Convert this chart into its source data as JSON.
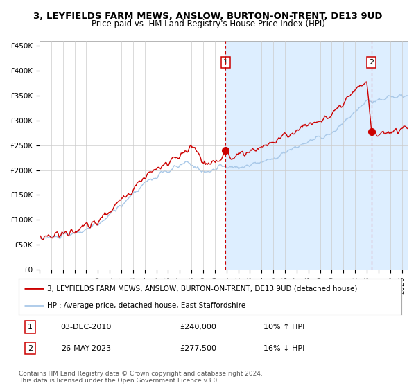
{
  "title": "3, LEYFIELDS FARM MEWS, ANSLOW, BURTON-ON-TRENT, DE13 9UD",
  "subtitle": "Price paid vs. HM Land Registry's House Price Index (HPI)",
  "ylabel_ticks": [
    "£0",
    "£50K",
    "£100K",
    "£150K",
    "£200K",
    "£250K",
    "£300K",
    "£350K",
    "£400K",
    "£450K"
  ],
  "ytick_vals": [
    0,
    50000,
    100000,
    150000,
    200000,
    250000,
    300000,
    350000,
    400000,
    450000
  ],
  "ylim": [
    0,
    460000
  ],
  "xlim_start": 1995.0,
  "xlim_end": 2026.5,
  "hpi_color": "#a8c8e8",
  "price_color": "#cc0000",
  "shaded_color": "#ddeeff",
  "grid_color": "#cccccc",
  "shaded_start": 2010.92,
  "shaded_end": 2026.5,
  "sale1_x": 2010.92,
  "sale1_y": 240000,
  "sale1_label": "1",
  "sale2_x": 2023.4,
  "sale2_y": 277500,
  "sale2_label": "2",
  "legend_line1": "3, LEYFIELDS FARM MEWS, ANSLOW, BURTON-ON-TRENT, DE13 9UD (detached house)",
  "legend_line2": "HPI: Average price, detached house, East Staffordshire",
  "note1_box": "1",
  "note1_date": "03-DEC-2010",
  "note1_price": "£240,000",
  "note1_hpi": "10% ↑ HPI",
  "note2_box": "2",
  "note2_date": "26-MAY-2023",
  "note2_price": "£277,500",
  "note2_hpi": "16% ↓ HPI",
  "footer": "Contains HM Land Registry data © Crown copyright and database right 2024.\nThis data is licensed under the Open Government Licence v3.0.",
  "title_fontsize": 9.5,
  "subtitle_fontsize": 8.5,
  "tick_fontsize": 7.5,
  "legend_fontsize": 7.5,
  "note_fontsize": 8,
  "footer_fontsize": 6.5
}
